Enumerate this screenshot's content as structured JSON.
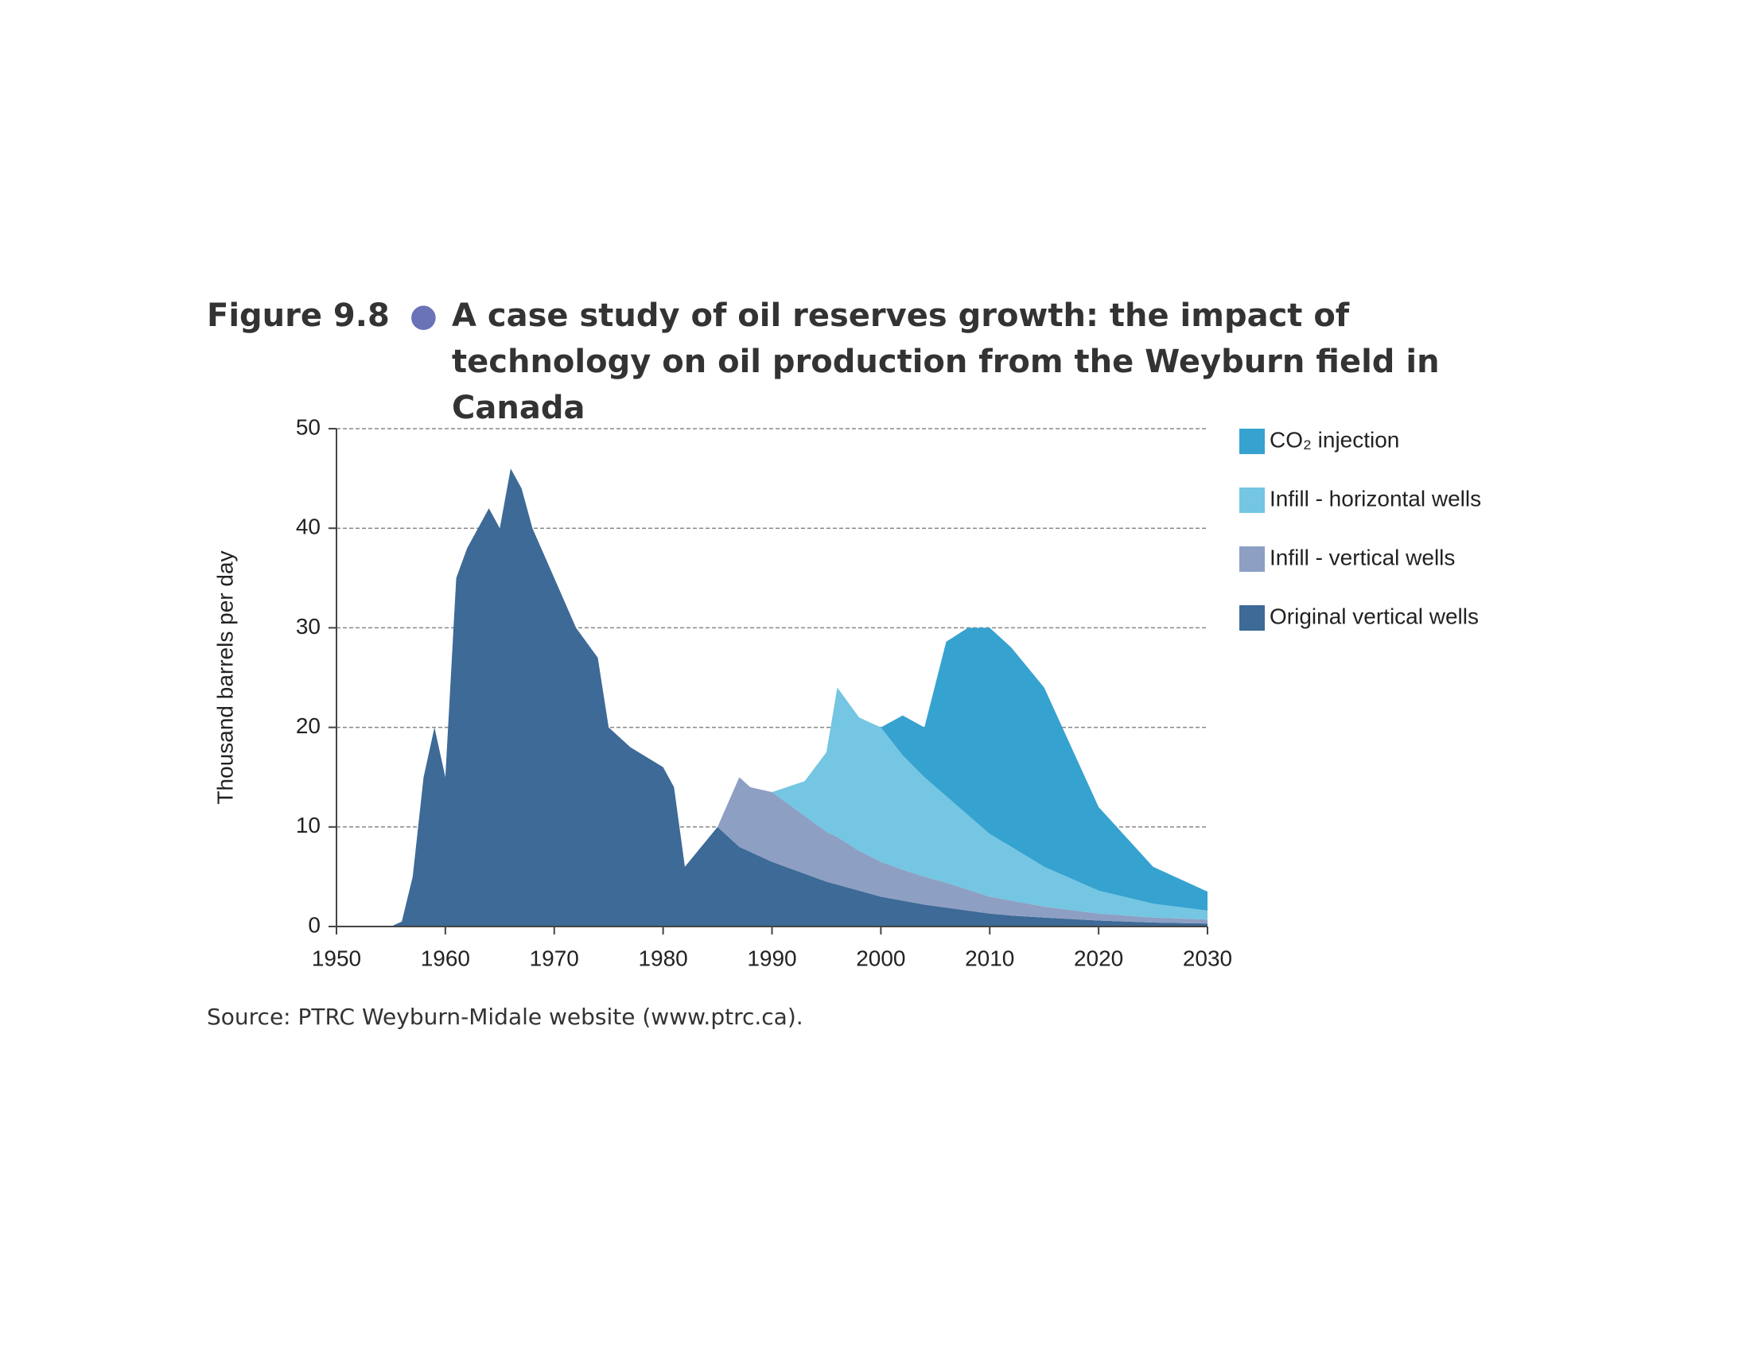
{
  "chart_data": {
    "type": "stacked_area",
    "figure_label": "Figure 9.8",
    "title": "A case study of oil reserves growth: the impact of technology on oil production from the Weyburn field in Canada",
    "y_label": "Thousand barrels per day",
    "source": "Source: PTRC Weyburn-Midale website (www.ptrc.ca).",
    "x": [
      1950,
      1955,
      1956,
      1957,
      1958,
      1959,
      1960,
      1961,
      1962,
      1963,
      1964,
      1965,
      1966,
      1967,
      1968,
      1970,
      1972,
      1974,
      1975,
      1977,
      1980,
      1981,
      1982,
      1985,
      1987,
      1988,
      1990,
      1993,
      1995,
      1996,
      1998,
      2000,
      2002,
      2004,
      2006,
      2008,
      2010,
      2012,
      2015,
      2020,
      2025,
      2030
    ],
    "series": [
      {
        "name": "CO₂ injection",
        "color": "#36a2d0",
        "values": [
          0,
          0,
          0,
          0,
          0,
          0,
          0,
          0,
          0,
          0,
          0,
          0,
          0,
          0,
          0,
          0,
          0,
          0,
          0,
          0,
          0,
          0,
          0,
          0,
          0,
          0,
          0,
          0,
          0,
          0,
          0,
          0,
          4,
          5,
          15.5,
          18.8,
          20.7,
          20,
          18,
          8.4,
          3.7,
          1.9
        ]
      },
      {
        "name": "Infill - horizontal wells",
        "color": "#74c6e2",
        "values": [
          0,
          0,
          0,
          0,
          0,
          0,
          0,
          0,
          0,
          0,
          0,
          0,
          0,
          0,
          0,
          0,
          0,
          0,
          0,
          0,
          0,
          0,
          0,
          0,
          0,
          0,
          0,
          3.5,
          8,
          15,
          13.4,
          13.5,
          11.5,
          10,
          8.7,
          7.5,
          6.3,
          5.4,
          4,
          2.3,
          1.4,
          0.9
        ]
      },
      {
        "name": "Infill - vertical wells",
        "color": "#8e9fc4",
        "values": [
          0,
          0,
          0,
          0,
          0,
          0,
          0,
          0,
          0,
          0,
          0,
          0,
          0,
          0,
          0,
          0,
          0,
          0,
          0,
          0,
          0,
          0,
          0,
          0,
          7,
          6.5,
          7,
          5.8,
          5,
          4.8,
          4,
          3.5,
          3.1,
          2.8,
          2.5,
          2.1,
          1.7,
          1.5,
          1.1,
          0.7,
          0.5,
          0.4
        ]
      },
      {
        "name": "Original vertical wells",
        "color": "#3d6a97",
        "values": [
          0,
          0,
          0.5,
          5,
          15,
          20,
          15,
          35,
          38,
          40,
          42,
          40,
          46,
          44,
          40,
          35,
          30,
          27,
          20,
          18,
          16,
          14,
          6,
          10,
          8,
          7.5,
          6.5,
          5.3,
          4.5,
          4.2,
          3.6,
          3,
          2.6,
          2.2,
          1.9,
          1.6,
          1.3,
          1.1,
          0.9,
          0.6,
          0.4,
          0.3
        ]
      }
    ],
    "xlim": [
      1950,
      2030
    ],
    "xticks": [
      1950,
      1960,
      1970,
      1980,
      1990,
      2000,
      2010,
      2020,
      2030
    ],
    "ylim": [
      0,
      50
    ],
    "yticks": [
      0,
      10,
      20,
      30,
      40,
      50
    ],
    "grid": true,
    "legend": "right"
  }
}
